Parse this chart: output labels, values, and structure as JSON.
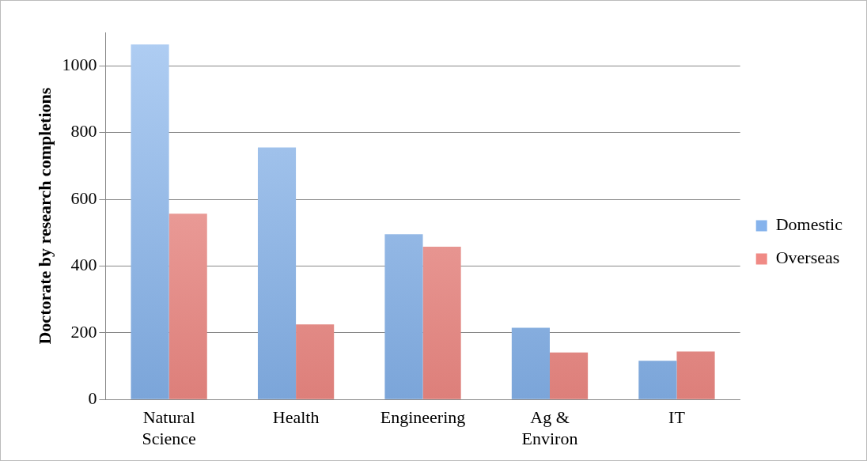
{
  "chart_data": {
    "type": "bar",
    "ylabel": "Doctorate by research completions",
    "categories": [
      "Natural Science",
      "Health",
      "Engineering",
      "Ag & Environ",
      "IT"
    ],
    "series": [
      {
        "name": "Domestic",
        "color": "#86b3ec",
        "values": [
          1064,
          755,
          495,
          215,
          116
        ]
      },
      {
        "name": "Overseas",
        "color": "#f08a85",
        "values": [
          557,
          225,
          458,
          141,
          144
        ]
      }
    ],
    "ylim": [
      0,
      1100
    ],
    "yticks": [
      0,
      200,
      400,
      600,
      800,
      1000
    ],
    "grid": "y",
    "legend": "right"
  }
}
